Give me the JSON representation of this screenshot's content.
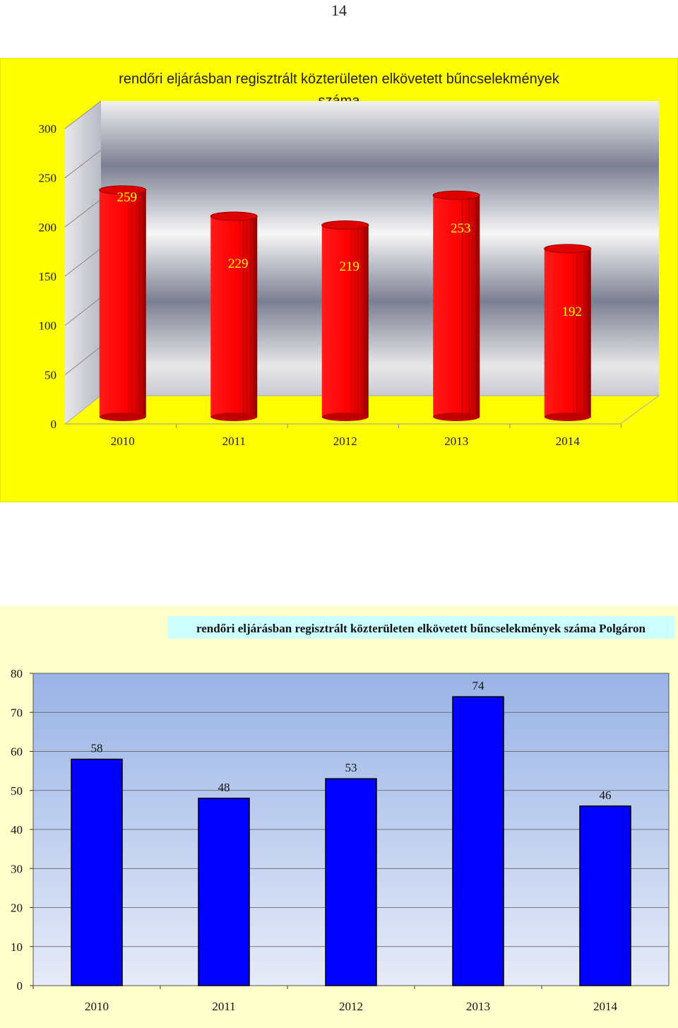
{
  "page_number": "14",
  "chart_data": [
    {
      "type": "bar",
      "title": "rendőri eljárásban regisztrált közterületen elkövetett bűncselekmények száma",
      "categories": [
        "2010",
        "2011",
        "2012",
        "2013",
        "2014"
      ],
      "values": [
        259,
        229,
        219,
        253,
        192
      ],
      "y_ticks": [
        "0",
        "50",
        "100",
        "150",
        "200",
        "250",
        "300"
      ],
      "ylim": [
        0,
        300
      ],
      "style": "3d-cylinder",
      "colors": {
        "background": "#ffff00",
        "bar": "#ff0000",
        "label": "#ffff00"
      },
      "legend": "none",
      "grid": true
    },
    {
      "type": "bar",
      "title": "rendőri eljárásban regisztrált közterületen elkövetett bűncselekmények száma Polgáron",
      "categories": [
        "2010",
        "2011",
        "2012",
        "2013",
        "2014"
      ],
      "values": [
        58,
        48,
        53,
        74,
        46
      ],
      "y_ticks": [
        "0",
        "10",
        "20",
        "30",
        "40",
        "50",
        "60",
        "70",
        "80"
      ],
      "ylim": [
        0,
        80
      ],
      "colors": {
        "background": "#ffffcc",
        "title_bg": "#ccffff",
        "bar": "#0000ff",
        "plot_top": "#99b3e6",
        "plot_bottom": "#e6ebf8"
      },
      "legend": "none",
      "grid": true
    }
  ]
}
